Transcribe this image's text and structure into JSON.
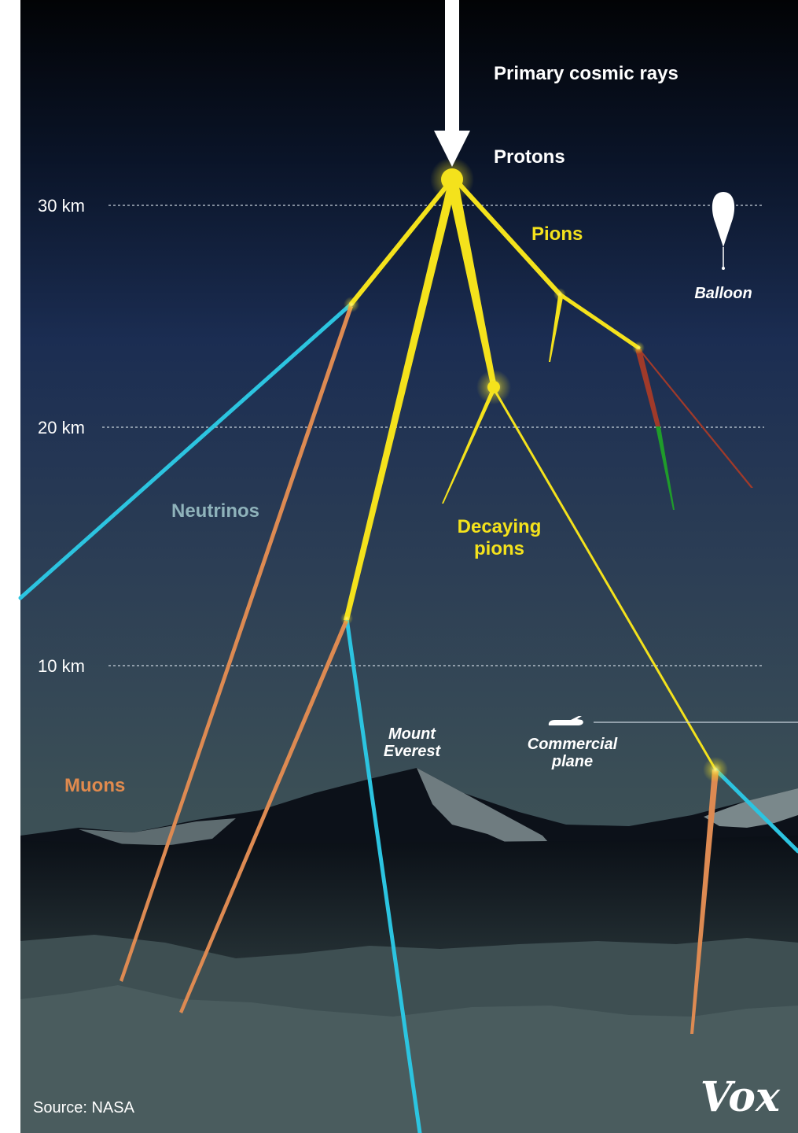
{
  "labels": {
    "primary": "Primary cosmic rays",
    "protons": "Protons",
    "pions": "Pions",
    "balloon": "Balloon",
    "neutrinos": "Neutrinos",
    "decaying_line1": "Decaying",
    "decaying_line2": "pions",
    "everest_line1": "Mount",
    "everest_line2": "Everest",
    "plane_line1": "Commercial",
    "plane_line2": "plane",
    "muons": "Muons"
  },
  "altitudes": [
    {
      "label": "30 km"
    },
    {
      "label": "20 km"
    },
    {
      "label": "10 km"
    }
  ],
  "source": "Source: NASA",
  "logo": "Vox",
  "colors": {
    "pion": "#f4e21c",
    "neutrino": "#2cc4e0",
    "muon": "#dd8a52",
    "sky_top": "#020305",
    "sky_mid": "#1b2d52",
    "ground": "#45585a"
  }
}
